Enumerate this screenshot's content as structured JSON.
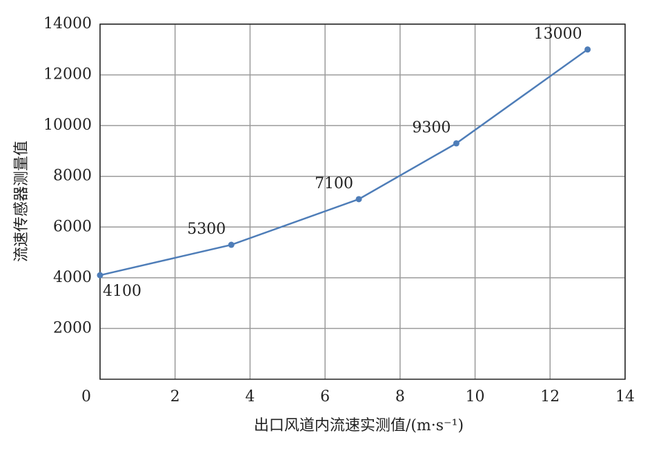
{
  "chart_data": {
    "type": "line",
    "xlabel": "出口风道内流速实测值/(m·s⁻¹)",
    "ylabel": "流速传感器测量值",
    "x": [
      0,
      3.5,
      6.9,
      9.5,
      13
    ],
    "series": [
      {
        "name": "流速传感器测量值",
        "color": "#4e7db8",
        "values": [
          4100,
          5300,
          7100,
          9300,
          13000
        ]
      }
    ],
    "xlim": [
      0,
      14
    ],
    "xticks": [
      0,
      2,
      4,
      6,
      8,
      10,
      12,
      14
    ],
    "ylim": [
      0,
      14000
    ],
    "yticks": [
      2000,
      4000,
      6000,
      8000,
      10000,
      12000,
      14000
    ],
    "grid": true
  }
}
